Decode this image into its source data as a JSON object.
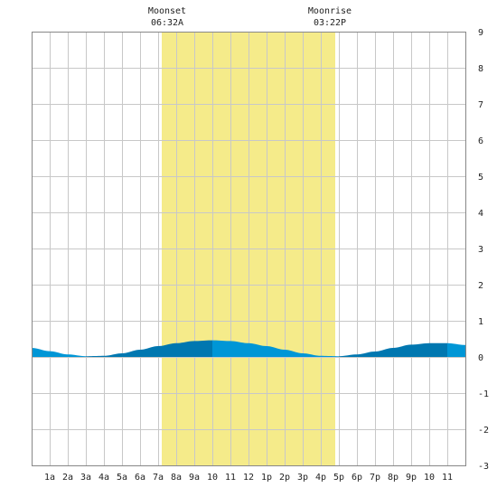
{
  "chart_data": {
    "type": "area",
    "title": "",
    "xlabel": "",
    "ylabel": "",
    "x_unit": "hour",
    "xlim": [
      0,
      24
    ],
    "ylim": [
      -3,
      9
    ],
    "y_ticks": [
      9,
      8,
      7,
      6,
      5,
      4,
      3,
      2,
      1,
      0,
      -1,
      -2,
      -3
    ],
    "x_tick_labels": [
      "1a",
      "2a",
      "3a",
      "4a",
      "5a",
      "6a",
      "7a",
      "8a",
      "9a",
      "10",
      "11",
      "12",
      "1p",
      "2p",
      "3p",
      "4p",
      "5p",
      "6p",
      "7p",
      "8p",
      "9p",
      "10",
      "11"
    ],
    "grid": true,
    "moon_window": {
      "start_hour": 7.2,
      "end_hour": 16.8,
      "color": "#f5eb8a",
      "moonset": {
        "label": "Moonset",
        "time": "06:32A"
      },
      "moonrise": {
        "label": "Moonrise",
        "time": "03:22P"
      }
    },
    "series": [
      {
        "x": [
          0,
          1,
          2,
          3,
          4,
          5,
          6,
          7,
          8,
          9,
          10,
          11,
          12,
          13,
          14,
          15,
          16,
          17,
          18,
          19,
          20,
          21,
          22,
          23,
          24
        ],
        "values": [
          0.25,
          0.16,
          0.07,
          0.02,
          0.03,
          0.1,
          0.2,
          0.3,
          0.38,
          0.44,
          0.46,
          0.44,
          0.38,
          0.3,
          0.2,
          0.1,
          0.03,
          0.02,
          0.07,
          0.15,
          0.25,
          0.34,
          0.38,
          0.38,
          0.33
        ]
      }
    ],
    "fill_colors": {
      "rising": "#0077b0",
      "falling": "#0096d6"
    }
  }
}
